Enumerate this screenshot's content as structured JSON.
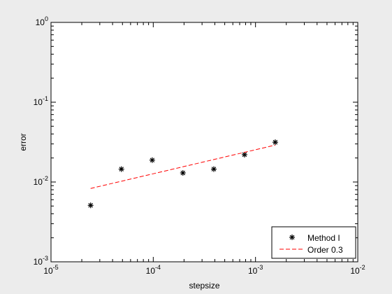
{
  "chart_data": {
    "type": "scatter",
    "xscale": "log",
    "yscale": "log",
    "xlabel": "stepsize",
    "ylabel": "error",
    "xlim": [
      1e-05,
      0.01
    ],
    "ylim": [
      0.001,
      1
    ],
    "x_ticks": [
      {
        "value": 1e-05,
        "base": "10",
        "exp": "-5"
      },
      {
        "value": 0.0001,
        "base": "10",
        "exp": "-4"
      },
      {
        "value": 0.001,
        "base": "10",
        "exp": "-3"
      },
      {
        "value": 0.01,
        "base": "10",
        "exp": "-2"
      }
    ],
    "y_ticks": [
      {
        "value": 0.001,
        "base": "10",
        "exp": "-3"
      },
      {
        "value": 0.01,
        "base": "10",
        "exp": "-2"
      },
      {
        "value": 0.1,
        "base": "10",
        "exp": "-1"
      },
      {
        "value": 1,
        "base": "10",
        "exp": "0"
      }
    ],
    "grid": false,
    "legend_position": "bottom-right",
    "series": [
      {
        "name": "Method I",
        "style": "markers",
        "marker": "asterisk",
        "color": "#000000",
        "x": [
          2.44e-05,
          4.88e-05,
          9.77e-05,
          0.000195,
          0.000391,
          0.000781,
          0.00156
        ],
        "y": [
          0.0051,
          0.0145,
          0.0188,
          0.013,
          0.0145,
          0.022,
          0.0315
        ]
      },
      {
        "name": "Order 0.3",
        "style": "dashed-line",
        "color": "#ff0000",
        "x": [
          2.44e-05,
          0.00156
        ],
        "y": [
          0.0083,
          0.029
        ]
      }
    ]
  }
}
